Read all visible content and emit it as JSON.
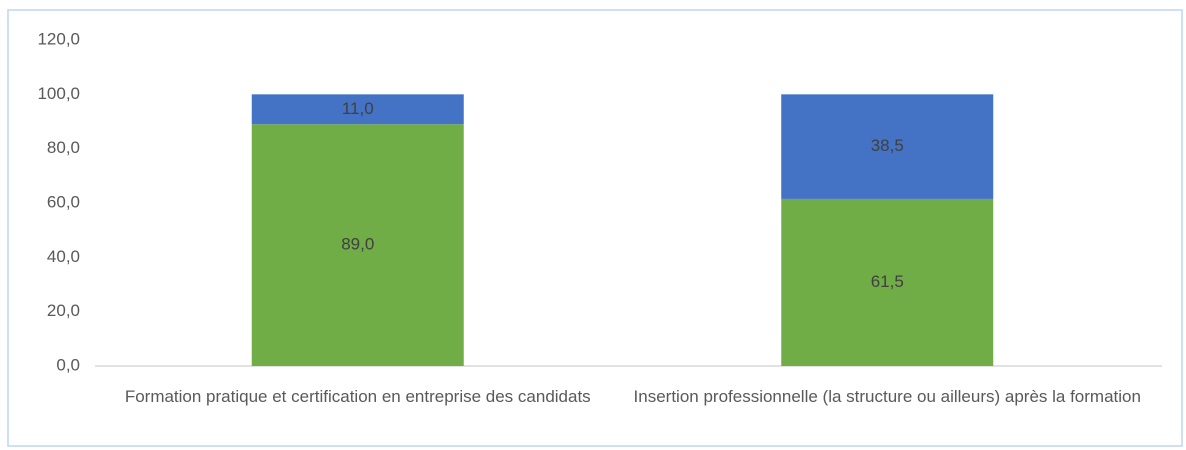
{
  "chart_data": {
    "type": "stacked_bar",
    "categories": [
      "Formation pratique et certification en entreprise des candidats",
      "Insertion professionnelle (la structure ou ailleurs) après la formation"
    ],
    "series": [
      {
        "color": "#70ad47",
        "values": [
          89.0,
          61.5
        ],
        "value_labels": [
          "89,0",
          "61,5"
        ]
      },
      {
        "color": "#4472c4",
        "values": [
          11.0,
          38.5
        ],
        "value_labels": [
          "11,0",
          "38,5"
        ]
      }
    ],
    "ylim": [
      0,
      120
    ],
    "yticks": [
      {
        "value": 0,
        "label": "0,0"
      },
      {
        "value": 20,
        "label": "20,0"
      },
      {
        "value": 40,
        "label": "40,0"
      },
      {
        "value": 60,
        "label": "60,0"
      },
      {
        "value": 80,
        "label": "80,0"
      },
      {
        "value": 100,
        "label": "100,0"
      },
      {
        "value": 120,
        "label": "120,0"
      }
    ]
  }
}
